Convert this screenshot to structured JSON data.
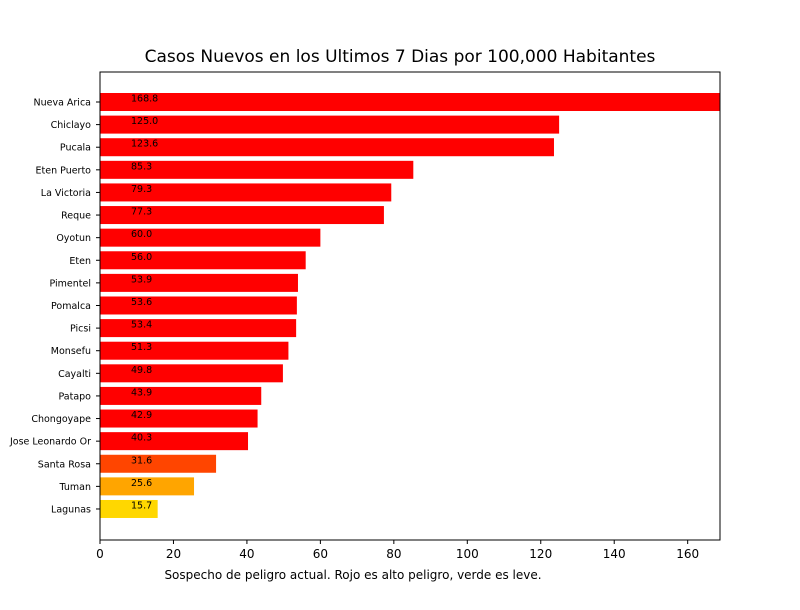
{
  "chart_data": {
    "type": "bar",
    "orientation": "horizontal",
    "title": "Casos Nuevos en los Ultimos 7 Dias por 100,000 Habitantes",
    "xlabel": "Sospecho de peligro actual. Rojo es alto peligro, verde es leve.",
    "ylabel": "",
    "xlim": [
      0,
      168.8
    ],
    "xticks": [
      0,
      20,
      40,
      60,
      80,
      100,
      120,
      140,
      160
    ],
    "grid": false,
    "categories": [
      "Nueva Arica",
      "Chiclayo",
      "Pucala",
      "Eten Puerto",
      "La Victoria",
      "Reque",
      "Oyotun",
      "Eten",
      "Pimentel",
      "Pomalca",
      "Picsi",
      "Monsefu",
      "Cayalti",
      "Patapo",
      "Chongoyape",
      "Jose Leonardo Or",
      "Santa Rosa",
      "Tuman",
      "Lagunas"
    ],
    "values": [
      168.8,
      125.0,
      123.6,
      85.3,
      79.3,
      77.3,
      60.0,
      56.0,
      53.9,
      53.6,
      53.4,
      51.3,
      49.8,
      43.9,
      42.9,
      40.3,
      31.6,
      25.6,
      15.7
    ],
    "value_labels": [
      "168.8",
      "125.0",
      "123.6",
      "85.3",
      "79.3",
      "77.3",
      "60.0",
      "56.0",
      "53.9",
      "53.6",
      "53.4",
      "51.3",
      "49.8",
      "43.9",
      "42.9",
      "40.3",
      "31.6",
      "25.6",
      "15.7"
    ],
    "colors": [
      "#ff0000",
      "#ff0000",
      "#ff0000",
      "#ff0000",
      "#ff0000",
      "#ff0000",
      "#ff0000",
      "#ff0000",
      "#ff0000",
      "#ff0000",
      "#ff0000",
      "#ff0000",
      "#ff0000",
      "#ff0000",
      "#ff0000",
      "#ff0000",
      "#ff4500",
      "#ffa500",
      "#ffd700"
    ]
  }
}
